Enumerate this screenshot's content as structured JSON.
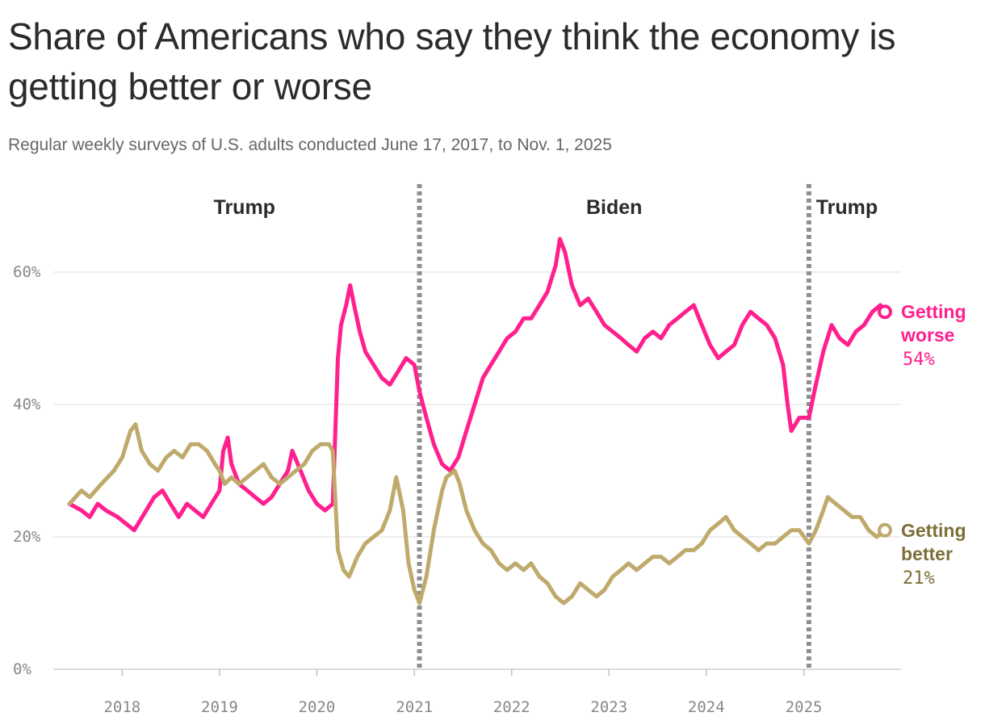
{
  "title": "Share of Americans who say they think the economy is getting better or worse",
  "subtitle": "Regular weekly surveys of U.S. adults conducted June 17, 2017, to Nov. 1, 2025",
  "colors": {
    "worse": "#ff1f8e",
    "better": "#bfaa6b",
    "better_text": "#7d6f38",
    "grid": "#e3e3e3",
    "divider": "#8f8f8f"
  },
  "chart_data": {
    "type": "line",
    "x_start": "2017-06-17",
    "x_end": "2025-11-01",
    "ylim": [
      0,
      70
    ],
    "yticks": [
      0,
      20,
      40,
      60
    ],
    "ytick_labels": [
      "0%",
      "20%",
      "40%",
      "60%"
    ],
    "xticks": [
      "2018",
      "2019",
      "2020",
      "2021",
      "2022",
      "2023",
      "2024",
      "2025"
    ],
    "grid": true,
    "eras": [
      {
        "label": "Trump",
        "from": "2017-06-17",
        "to": "2021-01-20"
      },
      {
        "label": "Biden",
        "from": "2021-01-20",
        "to": "2025-01-20"
      },
      {
        "label": "Trump",
        "from": "2025-01-20",
        "to": "2025-11-01"
      }
    ],
    "dividers": [
      "2021-01-20",
      "2025-01-20"
    ],
    "series": [
      {
        "name": "Getting worse",
        "name_lines": [
          "Getting",
          "worse"
        ],
        "key": "worse",
        "end_label": "54%",
        "points": [
          [
            "2017-06-17",
            25
          ],
          [
            "2017-08-01",
            24
          ],
          [
            "2017-09-01",
            23
          ],
          [
            "2017-10-01",
            25
          ],
          [
            "2017-11-01",
            24
          ],
          [
            "2017-12-15",
            23
          ],
          [
            "2018-01-15",
            22
          ],
          [
            "2018-02-15",
            21
          ],
          [
            "2018-04-01",
            24
          ],
          [
            "2018-05-01",
            26
          ],
          [
            "2018-06-01",
            27
          ],
          [
            "2018-07-01",
            25
          ],
          [
            "2018-08-01",
            23
          ],
          [
            "2018-09-01",
            25
          ],
          [
            "2018-10-01",
            24
          ],
          [
            "2018-11-01",
            23
          ],
          [
            "2018-12-01",
            25
          ],
          [
            "2019-01-01",
            27
          ],
          [
            "2019-01-15",
            33
          ],
          [
            "2019-02-01",
            35
          ],
          [
            "2019-02-15",
            31
          ],
          [
            "2019-03-15",
            28
          ],
          [
            "2019-04-15",
            27
          ],
          [
            "2019-05-15",
            26
          ],
          [
            "2019-06-15",
            25
          ],
          [
            "2019-07-15",
            26
          ],
          [
            "2019-08-15",
            28
          ],
          [
            "2019-09-15",
            30
          ],
          [
            "2019-10-01",
            33
          ],
          [
            "2019-11-01",
            30
          ],
          [
            "2019-12-01",
            27
          ],
          [
            "2020-01-01",
            25
          ],
          [
            "2020-02-01",
            24
          ],
          [
            "2020-03-01",
            25
          ],
          [
            "2020-03-20",
            47
          ],
          [
            "2020-04-01",
            52
          ],
          [
            "2020-04-20",
            55
          ],
          [
            "2020-05-05",
            58
          ],
          [
            "2020-05-20",
            55
          ],
          [
            "2020-06-10",
            51
          ],
          [
            "2020-07-01",
            48
          ],
          [
            "2020-08-01",
            46
          ],
          [
            "2020-09-01",
            44
          ],
          [
            "2020-10-01",
            43
          ],
          [
            "2020-11-01",
            45
          ],
          [
            "2020-12-01",
            47
          ],
          [
            "2021-01-01",
            46
          ],
          [
            "2021-01-20",
            42
          ],
          [
            "2021-02-15",
            38
          ],
          [
            "2021-03-15",
            34
          ],
          [
            "2021-04-15",
            31
          ],
          [
            "2021-05-15",
            30
          ],
          [
            "2021-06-15",
            32
          ],
          [
            "2021-07-15",
            36
          ],
          [
            "2021-08-15",
            40
          ],
          [
            "2021-09-15",
            44
          ],
          [
            "2021-10-15",
            46
          ],
          [
            "2021-11-15",
            48
          ],
          [
            "2021-12-15",
            50
          ],
          [
            "2022-01-15",
            51
          ],
          [
            "2022-02-15",
            53
          ],
          [
            "2022-03-15",
            53
          ],
          [
            "2022-04-15",
            55
          ],
          [
            "2022-05-15",
            57
          ],
          [
            "2022-06-15",
            61
          ],
          [
            "2022-07-01",
            65
          ],
          [
            "2022-07-20",
            63
          ],
          [
            "2022-08-15",
            58
          ],
          [
            "2022-09-15",
            55
          ],
          [
            "2022-10-15",
            56
          ],
          [
            "2022-11-15",
            54
          ],
          [
            "2022-12-15",
            52
          ],
          [
            "2023-01-15",
            51
          ],
          [
            "2023-02-15",
            50
          ],
          [
            "2023-03-15",
            49
          ],
          [
            "2023-04-15",
            48
          ],
          [
            "2023-05-15",
            50
          ],
          [
            "2023-06-15",
            51
          ],
          [
            "2023-07-15",
            50
          ],
          [
            "2023-08-15",
            52
          ],
          [
            "2023-09-15",
            53
          ],
          [
            "2023-10-15",
            54
          ],
          [
            "2023-11-15",
            55
          ],
          [
            "2023-12-15",
            52
          ],
          [
            "2024-01-15",
            49
          ],
          [
            "2024-02-15",
            47
          ],
          [
            "2024-03-15",
            48
          ],
          [
            "2024-04-15",
            49
          ],
          [
            "2024-05-15",
            52
          ],
          [
            "2024-06-15",
            54
          ],
          [
            "2024-07-15",
            53
          ],
          [
            "2024-08-15",
            52
          ],
          [
            "2024-09-15",
            50
          ],
          [
            "2024-10-15",
            46
          ],
          [
            "2024-11-01",
            40
          ],
          [
            "2024-11-15",
            36
          ],
          [
            "2024-12-15",
            38
          ],
          [
            "2025-01-20",
            38
          ],
          [
            "2025-02-15",
            43
          ],
          [
            "2025-03-15",
            48
          ],
          [
            "2025-04-15",
            52
          ],
          [
            "2025-05-15",
            50
          ],
          [
            "2025-06-15",
            49
          ],
          [
            "2025-07-15",
            51
          ],
          [
            "2025-08-15",
            52
          ],
          [
            "2025-09-15",
            54
          ],
          [
            "2025-10-15",
            55
          ],
          [
            "2025-11-01",
            54
          ]
        ]
      },
      {
        "name": "Getting better",
        "name_lines": [
          "Getting",
          "better"
        ],
        "key": "better",
        "end_label": "21%",
        "points": [
          [
            "2017-06-17",
            25
          ],
          [
            "2017-08-01",
            27
          ],
          [
            "2017-09-01",
            26
          ],
          [
            "2017-10-15",
            28
          ],
          [
            "2017-12-01",
            30
          ],
          [
            "2018-01-01",
            32
          ],
          [
            "2018-02-01",
            36
          ],
          [
            "2018-02-20",
            37
          ],
          [
            "2018-03-15",
            33
          ],
          [
            "2018-04-15",
            31
          ],
          [
            "2018-05-15",
            30
          ],
          [
            "2018-06-15",
            32
          ],
          [
            "2018-07-15",
            33
          ],
          [
            "2018-08-15",
            32
          ],
          [
            "2018-09-15",
            34
          ],
          [
            "2018-10-15",
            34
          ],
          [
            "2018-11-15",
            33
          ],
          [
            "2018-12-15",
            31
          ],
          [
            "2019-01-01",
            30
          ],
          [
            "2019-01-20",
            28
          ],
          [
            "2019-02-15",
            29
          ],
          [
            "2019-03-15",
            28
          ],
          [
            "2019-04-15",
            29
          ],
          [
            "2019-05-15",
            30
          ],
          [
            "2019-06-15",
            31
          ],
          [
            "2019-07-15",
            29
          ],
          [
            "2019-08-15",
            28
          ],
          [
            "2019-09-15",
            29
          ],
          [
            "2019-10-15",
            30
          ],
          [
            "2019-11-15",
            31
          ],
          [
            "2019-12-15",
            33
          ],
          [
            "2020-01-15",
            34
          ],
          [
            "2020-02-15",
            34
          ],
          [
            "2020-03-01",
            33
          ],
          [
            "2020-03-20",
            18
          ],
          [
            "2020-04-10",
            15
          ],
          [
            "2020-05-01",
            14
          ],
          [
            "2020-06-01",
            17
          ],
          [
            "2020-07-01",
            19
          ],
          [
            "2020-08-01",
            20
          ],
          [
            "2020-09-01",
            21
          ],
          [
            "2020-10-01",
            24
          ],
          [
            "2020-10-25",
            29
          ],
          [
            "2020-11-20",
            24
          ],
          [
            "2020-12-10",
            16
          ],
          [
            "2021-01-01",
            12
          ],
          [
            "2021-01-20",
            10
          ],
          [
            "2021-02-15",
            14
          ],
          [
            "2021-03-15",
            21
          ],
          [
            "2021-04-15",
            27
          ],
          [
            "2021-05-01",
            29
          ],
          [
            "2021-06-01",
            30
          ],
          [
            "2021-06-20",
            28
          ],
          [
            "2021-07-15",
            24
          ],
          [
            "2021-08-15",
            21
          ],
          [
            "2021-09-15",
            19
          ],
          [
            "2021-10-15",
            18
          ],
          [
            "2021-11-15",
            16
          ],
          [
            "2021-12-15",
            15
          ],
          [
            "2022-01-15",
            16
          ],
          [
            "2022-02-15",
            15
          ],
          [
            "2022-03-15",
            16
          ],
          [
            "2022-04-15",
            14
          ],
          [
            "2022-05-15",
            13
          ],
          [
            "2022-06-15",
            11
          ],
          [
            "2022-07-15",
            10
          ],
          [
            "2022-08-15",
            11
          ],
          [
            "2022-09-15",
            13
          ],
          [
            "2022-10-15",
            12
          ],
          [
            "2022-11-15",
            11
          ],
          [
            "2022-12-15",
            12
          ],
          [
            "2023-01-15",
            14
          ],
          [
            "2023-02-15",
            15
          ],
          [
            "2023-03-15",
            16
          ],
          [
            "2023-04-15",
            15
          ],
          [
            "2023-05-15",
            16
          ],
          [
            "2023-06-15",
            17
          ],
          [
            "2023-07-15",
            17
          ],
          [
            "2023-08-15",
            16
          ],
          [
            "2023-09-15",
            17
          ],
          [
            "2023-10-15",
            18
          ],
          [
            "2023-11-15",
            18
          ],
          [
            "2023-12-15",
            19
          ],
          [
            "2024-01-15",
            21
          ],
          [
            "2024-02-15",
            22
          ],
          [
            "2024-03-15",
            23
          ],
          [
            "2024-04-15",
            21
          ],
          [
            "2024-05-15",
            20
          ],
          [
            "2024-06-15",
            19
          ],
          [
            "2024-07-15",
            18
          ],
          [
            "2024-08-15",
            19
          ],
          [
            "2024-09-15",
            19
          ],
          [
            "2024-10-15",
            20
          ],
          [
            "2024-11-15",
            21
          ],
          [
            "2024-12-15",
            21
          ],
          [
            "2025-01-20",
            19
          ],
          [
            "2025-02-15",
            21
          ],
          [
            "2025-03-15",
            24
          ],
          [
            "2025-04-01",
            26
          ],
          [
            "2025-05-01",
            25
          ],
          [
            "2025-06-01",
            24
          ],
          [
            "2025-07-01",
            23
          ],
          [
            "2025-08-01",
            23
          ],
          [
            "2025-09-01",
            21
          ],
          [
            "2025-10-01",
            20
          ],
          [
            "2025-11-01",
            21
          ]
        ]
      }
    ]
  }
}
